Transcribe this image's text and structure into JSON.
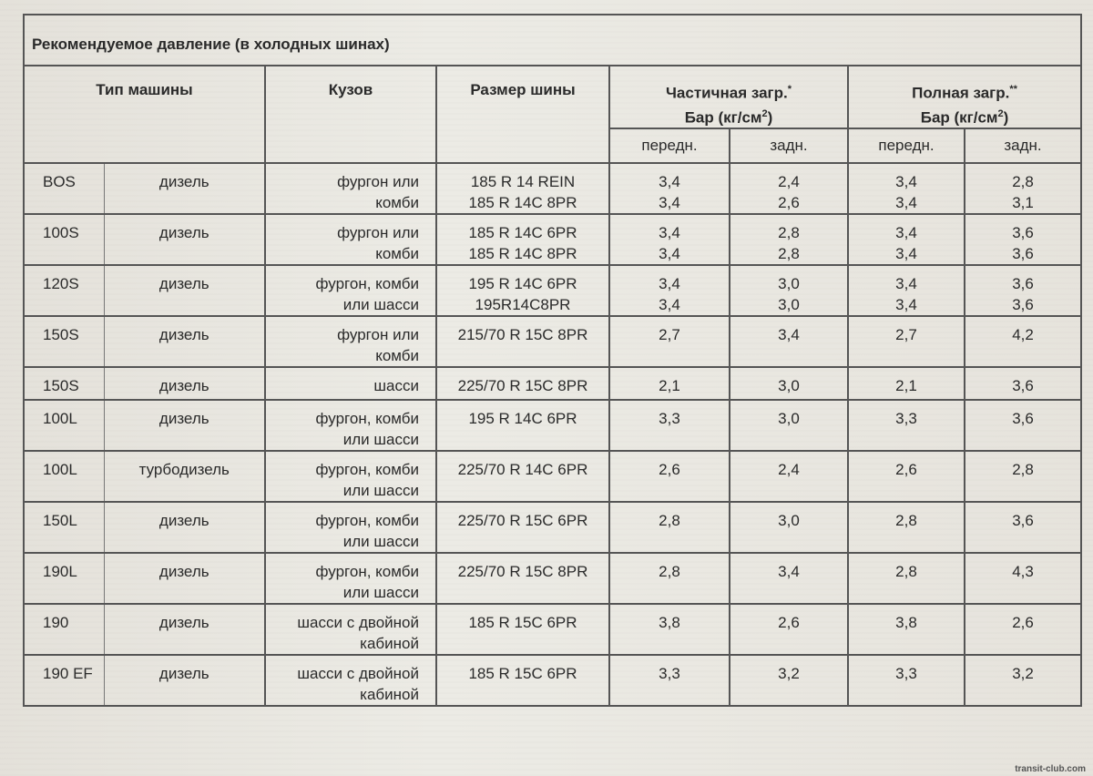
{
  "title": "Рекомендуемое давление (в холодных шинах)",
  "headers": {
    "vehicle_type": "Тип машины",
    "body": "Кузов",
    "tire_size": "Размер шины",
    "partial_load": "Частичная загр.",
    "partial_load_mark": "*",
    "full_load": "Полная загр.",
    "full_load_mark": "**",
    "unit": "Бар (кг/см",
    "unit_sup": "2",
    "unit_close": ")",
    "front": "передн.",
    "rear": "задн."
  },
  "rows": [
    {
      "model": "BOS",
      "engine": "дизель",
      "body": [
        "фургон или",
        "комби"
      ],
      "tires": [
        "185 R 14 REIN",
        "185 R 14C 8PR"
      ],
      "pf": [
        "3,4",
        "3,4"
      ],
      "pr": [
        "2,4",
        "2,6"
      ],
      "ff": [
        "3,4",
        "3,4"
      ],
      "fr": [
        "2,8",
        "3,1"
      ]
    },
    {
      "model": "100S",
      "engine": "дизель",
      "body": [
        "фургон или",
        "комби"
      ],
      "tires": [
        "185 R 14C 6PR",
        "185 R 14C 8PR"
      ],
      "pf": [
        "3,4",
        "3,4"
      ],
      "pr": [
        "2,8",
        "2,8"
      ],
      "ff": [
        "3,4",
        "3,4"
      ],
      "fr": [
        "3,6",
        "3,6"
      ]
    },
    {
      "model": "120S",
      "engine": "дизель",
      "body": [
        "фургон, комби",
        "или шасси"
      ],
      "tires": [
        "195 R 14C 6PR",
        "195R14C8PR"
      ],
      "pf": [
        "3,4",
        "3,4"
      ],
      "pr": [
        "3,0",
        "3,0"
      ],
      "ff": [
        "3,4",
        "3,4"
      ],
      "fr": [
        "3,6",
        "3,6"
      ]
    },
    {
      "model": "150S",
      "engine": "дизель",
      "body": [
        "фургон или",
        "комби"
      ],
      "tires": [
        "215/70 R 15C 8PR"
      ],
      "pf": [
        "2,7"
      ],
      "pr": [
        "3,4"
      ],
      "ff": [
        "2,7"
      ],
      "fr": [
        "4,2"
      ]
    },
    {
      "model": "150S",
      "engine": "дизель",
      "body": [
        "шасси"
      ],
      "tires": [
        "225/70 R 15C 8PR"
      ],
      "pf": [
        "2,1"
      ],
      "pr": [
        "3,0"
      ],
      "ff": [
        "2,1"
      ],
      "fr": [
        "3,6"
      ]
    },
    {
      "model": "100L",
      "engine": "дизель",
      "body": [
        "фургон, комби",
        "или шасси"
      ],
      "tires": [
        "195 R 14C 6PR"
      ],
      "pf": [
        "3,3"
      ],
      "pr": [
        "3,0"
      ],
      "ff": [
        "3,3"
      ],
      "fr": [
        "3,6"
      ]
    },
    {
      "model": "100L",
      "engine": "турбодизель",
      "body": [
        "фургон, комби",
        "или шасси"
      ],
      "tires": [
        "225/70 R 14C 6PR"
      ],
      "pf": [
        "2,6"
      ],
      "pr": [
        "2,4"
      ],
      "ff": [
        "2,6"
      ],
      "fr": [
        "2,8"
      ]
    },
    {
      "model": "150L",
      "engine": "дизель",
      "body": [
        "фургон, комби",
        "или шасси"
      ],
      "tires": [
        "225/70 R 15C 6PR"
      ],
      "pf": [
        "2,8"
      ],
      "pr": [
        "3,0"
      ],
      "ff": [
        "2,8"
      ],
      "fr": [
        "3,6"
      ]
    },
    {
      "model": "190L",
      "engine": "дизель",
      "body": [
        "фургон, комби",
        "или шасси"
      ],
      "tires": [
        "225/70 R 15C 8PR"
      ],
      "pf": [
        "2,8"
      ],
      "pr": [
        "3,4"
      ],
      "ff": [
        "2,8"
      ],
      "fr": [
        "4,3"
      ]
    },
    {
      "model": "190",
      "engine": "дизель",
      "body": [
        "шасси с двойной",
        "кабиной"
      ],
      "tires": [
        "185 R 15C 6PR"
      ],
      "pf": [
        "3,8"
      ],
      "pr": [
        "2,6"
      ],
      "ff": [
        "3,8"
      ],
      "fr": [
        "2,6"
      ]
    },
    {
      "model": "190 EF",
      "engine": "дизель",
      "body": [
        "шасси с двойной",
        "кабиной"
      ],
      "tires": [
        "185 R 15C 6PR"
      ],
      "pf": [
        "3,3"
      ],
      "pr": [
        "3,2"
      ],
      "ff": [
        "3,3"
      ],
      "fr": [
        "3,2"
      ]
    }
  ],
  "watermark": "transit-club.com"
}
